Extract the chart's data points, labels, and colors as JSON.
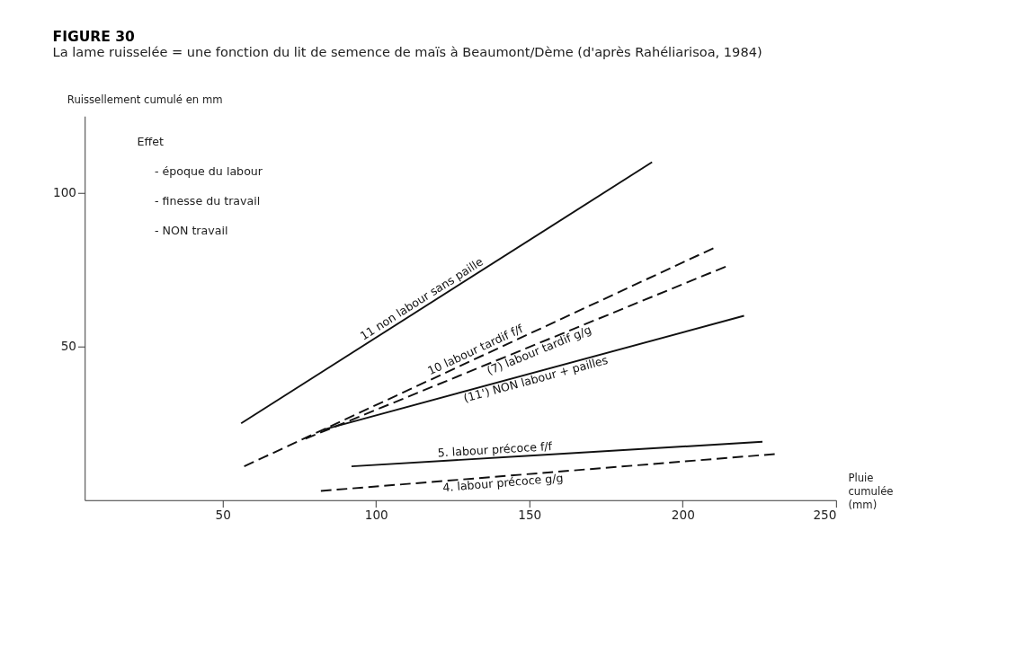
{
  "chart_data": {
    "type": "line",
    "title": "FIGURE 30",
    "subtitle": "La lame ruisselée = une fonction du lit de semence de maïs à Beaumont/Dème (d'après Rahéliarisoa, 1984)",
    "xlabel": "Pluie cumulée (mm)",
    "ylabel": "Ruissellement cumulé en mm",
    "annotations": [
      "Effet",
      "- époque du labour",
      "- finesse du travail",
      "- NON travail"
    ],
    "series": [
      {
        "name": "11 non labour sans paille",
        "color": "#111111",
        "line_style": "solid",
        "x": [
          56,
          190
        ],
        "values": [
          25,
          110
        ]
      },
      {
        "name": "10 labour tardif f/f",
        "color": "#111111",
        "line_style": "dashed",
        "x": [
          57,
          210
        ],
        "values": [
          11,
          82
        ]
      },
      {
        "name": "(7) labour tardif g/g",
        "color": "#111111",
        "line_style": "dashed",
        "x": [
          77,
          214
        ],
        "values": [
          20,
          76
        ]
      },
      {
        "name": "(11') NON labour + pailles",
        "color": "#111111",
        "line_style": "solid",
        "x": [
          83,
          220
        ],
        "values": [
          23,
          60
        ]
      },
      {
        "name": "5. labour précoce f/f",
        "color": "#111111",
        "line_style": "solid",
        "x": [
          92,
          226
        ],
        "values": [
          11,
          19
        ]
      },
      {
        "name": "4. labour précoce g/g",
        "color": "#111111",
        "line_style": "dashed",
        "x": [
          82,
          230
        ],
        "values": [
          3,
          15
        ]
      }
    ],
    "xlim": [
      5,
      250
    ],
    "ylim": [
      0,
      125
    ],
    "xticks": [
      50,
      100,
      150,
      200,
      250
    ],
    "yticks": [
      50,
      100
    ],
    "grid": false,
    "marker": "none"
  }
}
